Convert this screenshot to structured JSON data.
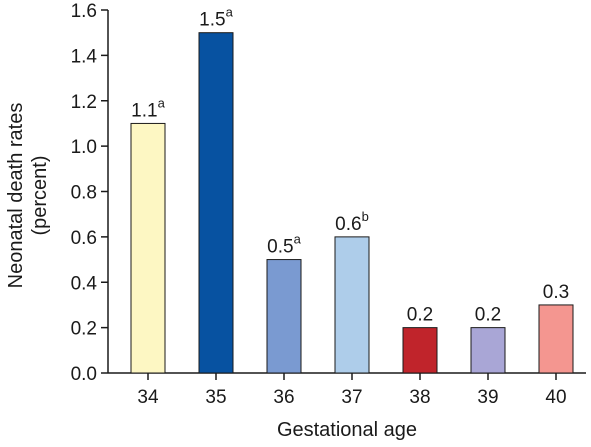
{
  "chart_data": {
    "type": "bar",
    "title": "",
    "xlabel": "Gestational age",
    "ylabel": "Neonatal death rates (percent)",
    "ylabel_lines": [
      "Neonatal death rates",
      "(percent)"
    ],
    "categories": [
      "34",
      "35",
      "36",
      "37",
      "38",
      "39",
      "40"
    ],
    "values": [
      1.1,
      1.5,
      0.5,
      0.6,
      0.2,
      0.2,
      0.3
    ],
    "data_labels": [
      {
        "text": "1.1",
        "sup": "a"
      },
      {
        "text": "1.5",
        "sup": "a"
      },
      {
        "text": "0.5",
        "sup": "a"
      },
      {
        "text": "0.6",
        "sup": "b"
      },
      {
        "text": "0.2",
        "sup": ""
      },
      {
        "text": "0.2",
        "sup": ""
      },
      {
        "text": "0.3",
        "sup": ""
      }
    ],
    "bar_colors": [
      "#fdf7c3",
      "#0752a1",
      "#7a9ad1",
      "#aecdea",
      "#c0242b",
      "#a9a6d6",
      "#f49690"
    ],
    "ylim": [
      0,
      1.6
    ],
    "yticks": [
      0.0,
      0.2,
      0.4,
      0.6,
      0.8,
      1.0,
      1.2,
      1.4,
      1.6
    ],
    "ytick_labels": [
      "0.0",
      "0.2",
      "0.4",
      "0.6",
      "0.8",
      "1.0",
      "1.2",
      "1.4",
      "1.6"
    ],
    "grid": false,
    "legend": "none"
  }
}
